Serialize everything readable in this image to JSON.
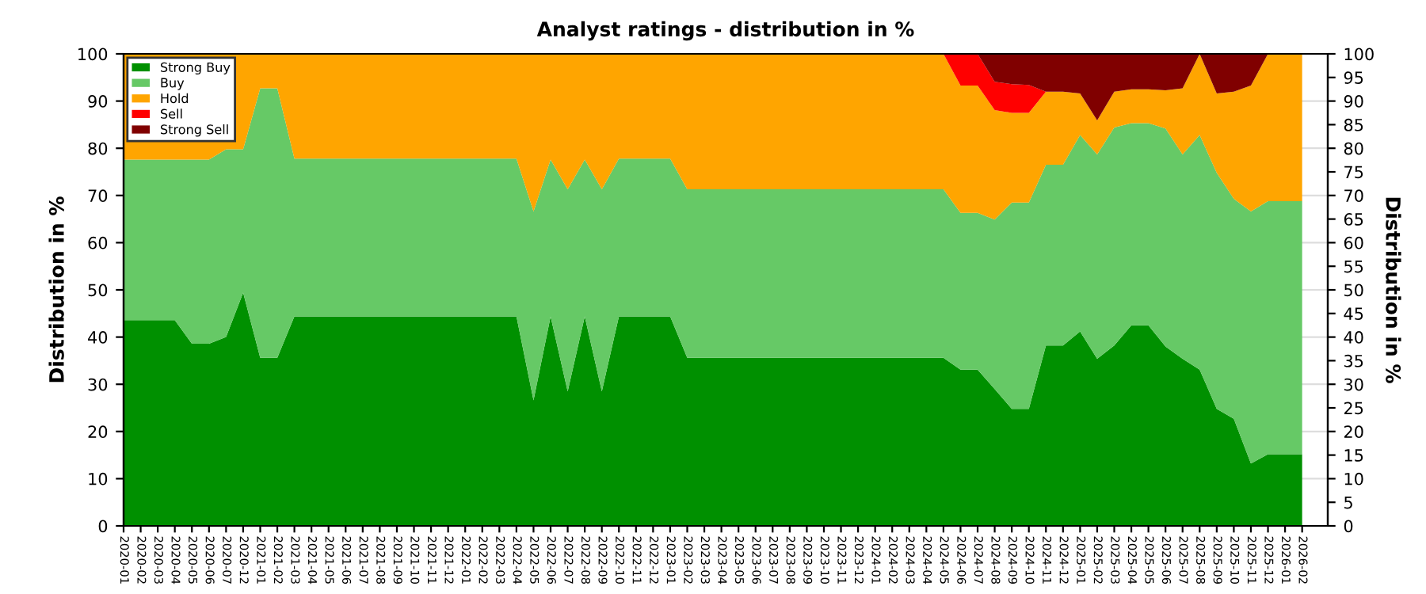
{
  "chart_data": {
    "type": "area",
    "stacked": true,
    "title": "Analyst ratings - distribution in %",
    "ylabel": "Distribution in %",
    "y2label": "Distribution in %",
    "categories": [
      "2020-01",
      "2020-02",
      "2020-03",
      "2020-04",
      "2020-05",
      "2020-06",
      "2020-07",
      "2020-12",
      "2021-01",
      "2021-02",
      "2021-03",
      "2021-04",
      "2021-05",
      "2021-06",
      "2021-07",
      "2021-08",
      "2021-09",
      "2021-10",
      "2021-11",
      "2021-12",
      "2022-01",
      "2022-02",
      "2022-03",
      "2022-04",
      "2022-05",
      "2022-06",
      "2022-07",
      "2022-08",
      "2022-09",
      "2022-10",
      "2022-11",
      "2022-12",
      "2023-01",
      "2023-02",
      "2023-03",
      "2023-04",
      "2023-05",
      "2023-06",
      "2023-07",
      "2023-08",
      "2023-09",
      "2023-10",
      "2023-11",
      "2023-12",
      "2024-01",
      "2024-02",
      "2024-03",
      "2024-04",
      "2024-05",
      "2024-06",
      "2024-07",
      "2024-08",
      "2024-09",
      "2024-10",
      "2024-11",
      "2024-12",
      "2025-01",
      "2025-02",
      "2025-03",
      "2025-04",
      "2025-05",
      "2025-06",
      "2025-07",
      "2025-08",
      "2025-09",
      "2025-10",
      "2025-11",
      "2025-12",
      "2026-01",
      "2026-02"
    ],
    "series": [
      {
        "name": "Strong Buy",
        "color": "#009000",
        "values": [
          43.6,
          43.6,
          43.6,
          43.6,
          38.6,
          38.6,
          40,
          49.4,
          35.6,
          35.6,
          44.4,
          44.4,
          44.4,
          44.4,
          44.4,
          44.4,
          44.4,
          44.4,
          44.4,
          44.4,
          44.4,
          44.4,
          44.4,
          44.4,
          26.6,
          44.4,
          28.5,
          44.4,
          28.5,
          44.4,
          44.4,
          44.4,
          44.4,
          35.6,
          35.6,
          35.6,
          35.6,
          35.6,
          35.6,
          35.6,
          35.6,
          35.6,
          35.6,
          35.6,
          35.6,
          35.6,
          35.6,
          35.6,
          35.6,
          33.1,
          33.1,
          29.0,
          24.8,
          24.8,
          38.2,
          38.2,
          41.2,
          35.4,
          38.2,
          42.5,
          42.5,
          38.0,
          35.4,
          33.1,
          24.8,
          22.7,
          13.2,
          15.2,
          15.2,
          15.2
        ]
      },
      {
        "name": "Buy",
        "color": "#66c966",
        "values": [
          34.0,
          34.0,
          34.0,
          34.0,
          39.0,
          39.0,
          39.8,
          30.4,
          57.1,
          57.1,
          33.4,
          33.4,
          33.4,
          33.4,
          33.4,
          33.4,
          33.4,
          33.4,
          33.4,
          33.4,
          33.4,
          33.4,
          33.4,
          33.4,
          40.0,
          33.2,
          42.8,
          33.2,
          42.8,
          33.4,
          33.4,
          33.4,
          33.4,
          35.7,
          35.7,
          35.7,
          35.7,
          35.7,
          35.7,
          35.7,
          35.7,
          35.7,
          35.7,
          35.7,
          35.7,
          35.7,
          35.7,
          35.7,
          35.7,
          33.2,
          33.2,
          35.9,
          43.7,
          43.7,
          38.3,
          38.3,
          41.6,
          43.3,
          46.2,
          42.8,
          42.8,
          46.2,
          43.3,
          49.7,
          50.0,
          46.6,
          53.4,
          53.6,
          53.6,
          53.6
        ]
      },
      {
        "name": "Hold",
        "color": "#ffa500",
        "values": [
          22.4,
          22.4,
          22.4,
          22.4,
          22.4,
          22.4,
          20.2,
          20.2,
          7.3,
          7.3,
          22.2,
          22.2,
          22.2,
          22.2,
          22.2,
          22.2,
          22.2,
          22.2,
          22.2,
          22.2,
          22.2,
          22.2,
          22.2,
          22.2,
          33.4,
          22.4,
          28.7,
          22.4,
          28.7,
          22.2,
          22.2,
          22.2,
          22.2,
          28.7,
          28.7,
          28.7,
          28.7,
          28.7,
          28.7,
          28.7,
          28.7,
          28.7,
          28.7,
          28.7,
          28.7,
          28.7,
          28.7,
          28.7,
          28.7,
          27.0,
          27.0,
          23.2,
          19.0,
          19.0,
          15.5,
          15.5,
          8.8,
          7.2,
          7.6,
          7.2,
          7.2,
          8.1,
          14.0,
          17.2,
          16.8,
          22.7,
          26.7,
          31.2,
          31.2,
          31.2
        ]
      },
      {
        "name": "Sell",
        "color": "#ff0000",
        "values": [
          null,
          null,
          null,
          null,
          null,
          null,
          null,
          null,
          null,
          null,
          null,
          null,
          null,
          null,
          null,
          null,
          null,
          null,
          null,
          null,
          null,
          null,
          null,
          null,
          null,
          null,
          null,
          null,
          null,
          null,
          null,
          null,
          null,
          null,
          null,
          null,
          null,
          null,
          null,
          null,
          null,
          null,
          null,
          null,
          null,
          null,
          null,
          null,
          0,
          6.7,
          6.7,
          6.0,
          6.1,
          5.9,
          0,
          null,
          null,
          null,
          null,
          null,
          null,
          null,
          null,
          null,
          null,
          null,
          null,
          null,
          null,
          null
        ]
      },
      {
        "name": "Strong Sell",
        "color": "#800000",
        "values": [
          null,
          null,
          null,
          null,
          null,
          null,
          null,
          null,
          null,
          null,
          null,
          null,
          null,
          null,
          null,
          null,
          null,
          null,
          null,
          null,
          null,
          null,
          null,
          null,
          null,
          null,
          null,
          null,
          null,
          null,
          null,
          null,
          null,
          null,
          null,
          null,
          null,
          null,
          null,
          null,
          null,
          null,
          null,
          null,
          null,
          null,
          null,
          null,
          null,
          null,
          0,
          5.9,
          6.4,
          6.6,
          8.0,
          8.0,
          8.4,
          14.1,
          8.0,
          7.5,
          7.5,
          7.7,
          7.3,
          0,
          8.4,
          8.0,
          6.7,
          0,
          null,
          null
        ]
      }
    ],
    "ylim": [
      0,
      100
    ],
    "yticks": [
      0,
      10,
      20,
      30,
      40,
      50,
      60,
      70,
      80,
      90,
      100
    ],
    "y2lim": [
      0,
      100
    ],
    "y2ticks": [
      0,
      5,
      10,
      15,
      20,
      25,
      30,
      35,
      40,
      45,
      50,
      55,
      60,
      65,
      70,
      75,
      80,
      85,
      90,
      95,
      100
    ],
    "grid": "y",
    "legend": "top left"
  }
}
